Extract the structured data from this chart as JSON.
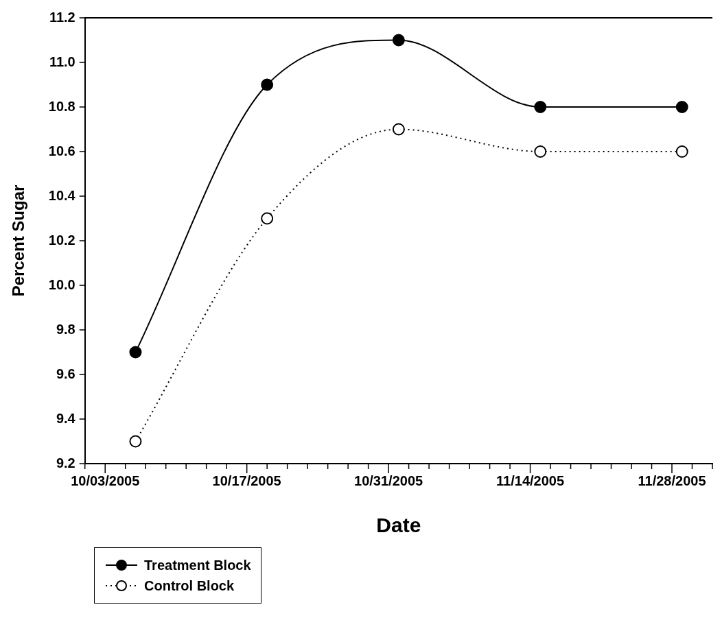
{
  "chart_data": {
    "type": "line",
    "xlabel": "Date",
    "ylabel": "Percent Sugar",
    "x": [
      "2005-10-06",
      "2005-10-19",
      "2005-11-01",
      "2005-11-15",
      "2005-11-29"
    ],
    "series": [
      {
        "name": "Treatment Block",
        "color": "#000000",
        "line_style": "solid",
        "values": [
          9.7,
          10.9,
          11.1,
          10.8,
          10.8
        ]
      },
      {
        "name": "Control Block",
        "color": "#000000",
        "line_style": "dotted",
        "values": [
          9.3,
          10.3,
          10.7,
          10.6,
          10.6
        ]
      }
    ],
    "xlim": [
      "2005-10-01",
      "2005-12-02"
    ],
    "xticks": [
      {
        "value": "2005-10-01",
        "label": null
      },
      {
        "value": "2005-10-03",
        "label": "10/03/2005"
      },
      {
        "value": "2005-10-05",
        "label": null
      },
      {
        "value": "2005-10-07",
        "label": null
      },
      {
        "value": "2005-10-09",
        "label": null
      },
      {
        "value": "2005-10-11",
        "label": null
      },
      {
        "value": "2005-10-13",
        "label": null
      },
      {
        "value": "2005-10-15",
        "label": null
      },
      {
        "value": "2005-10-17",
        "label": "10/17/2005"
      },
      {
        "value": "2005-10-19",
        "label": null
      },
      {
        "value": "2005-10-21",
        "label": null
      },
      {
        "value": "2005-10-23",
        "label": null
      },
      {
        "value": "2005-10-25",
        "label": null
      },
      {
        "value": "2005-10-27",
        "label": null
      },
      {
        "value": "2005-10-29",
        "label": null
      },
      {
        "value": "2005-10-31",
        "label": "10/31/2005"
      },
      {
        "value": "2005-11-02",
        "label": null
      },
      {
        "value": "2005-11-04",
        "label": null
      },
      {
        "value": "2005-11-06",
        "label": null
      },
      {
        "value": "2005-11-08",
        "label": null
      },
      {
        "value": "2005-11-10",
        "label": null
      },
      {
        "value": "2005-11-12",
        "label": null
      },
      {
        "value": "2005-11-14",
        "label": "11/14/2005"
      },
      {
        "value": "2005-11-16",
        "label": null
      },
      {
        "value": "2005-11-18",
        "label": null
      },
      {
        "value": "2005-11-20",
        "label": null
      },
      {
        "value": "2005-11-22",
        "label": null
      },
      {
        "value": "2005-11-24",
        "label": null
      },
      {
        "value": "2005-11-26",
        "label": null
      },
      {
        "value": "2005-11-28",
        "label": "11/28/2005"
      },
      {
        "value": "2005-11-30",
        "label": null
      },
      {
        "value": "2005-12-02",
        "label": null
      }
    ],
    "ylim": [
      9.2,
      11.2
    ],
    "yticks": [
      9.2,
      9.4,
      9.6,
      9.8,
      {
        "value": 10,
        "label": "10.0"
      },
      10.2,
      10.4,
      10.6,
      10.8,
      {
        "value": 11,
        "label": "11.0"
      },
      11.2
    ],
    "grid": false,
    "legend": "bottom left",
    "marker": "circle"
  }
}
